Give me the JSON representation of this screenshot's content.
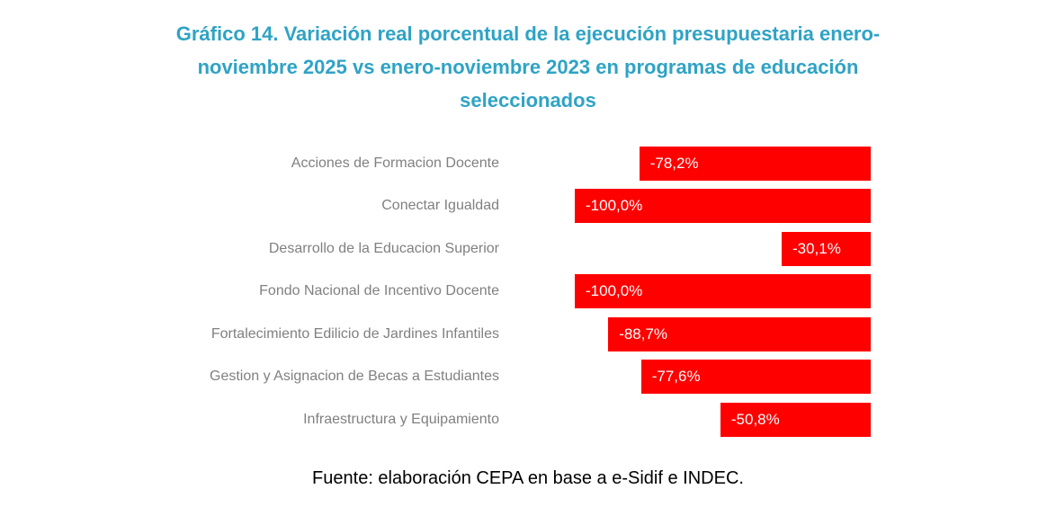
{
  "title": {
    "lines": [
      "Gráfico 14. Variación real porcentual de la ejecución presupuestaria enero-",
      "noviembre 2025 vs enero-noviembre 2023 en programas de educación",
      "seleccionados"
    ]
  },
  "chart_data": {
    "type": "bar",
    "orientation": "horizontal",
    "title": "Gráfico 14. Variación real porcentual de la ejecución presupuestaria enero-noviembre 2025 vs enero-noviembre 2023 en programas de educación seleccionados",
    "categories": [
      "Acciones de Formacion Docente",
      "Conectar Igualdad",
      "Desarrollo de la Educacion Superior",
      "Fondo Nacional de Incentivo Docente",
      "Fortalecimiento Edilicio de Jardines Infantiles",
      "Gestion y Asignacion de Becas a Estudiantes",
      "Infraestructura y Equipamiento"
    ],
    "values": [
      -78.2,
      -100.0,
      -30.1,
      -100.0,
      -88.7,
      -77.6,
      -50.8
    ],
    "value_labels": [
      "-78,2%",
      "-100,0%",
      "-30,1%",
      "-100,0%",
      "-88,7%",
      "-77,6%",
      "-50,8%"
    ],
    "unit": "%",
    "xlim": [
      -100,
      0
    ],
    "zero_axis_position": "right",
    "grid": false,
    "legend": false
  },
  "footer": {
    "text": "Fuente: elaboración CEPA en base a e-Sidif e INDEC."
  },
  "colors": {
    "title": "#2FA3C5",
    "bar": "#FF0000",
    "category_label": "#808080",
    "value_label": "#FFFFFF",
    "background": "#FFFFFF"
  }
}
